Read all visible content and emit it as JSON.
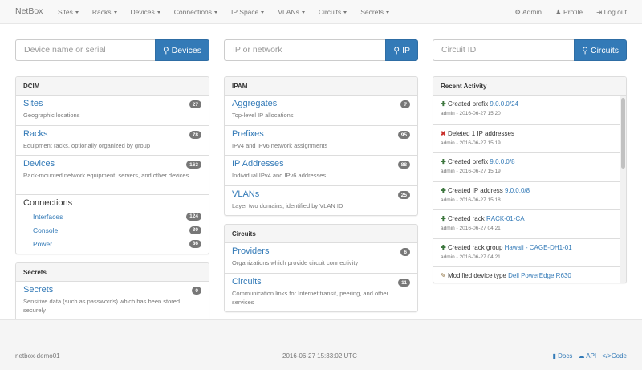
{
  "nav": {
    "brand": "NetBox",
    "menu": [
      "Sites",
      "Racks",
      "Devices",
      "Connections",
      "IP Space",
      "VLANs",
      "Circuits",
      "Secrets"
    ],
    "admin": "Admin",
    "profile": "Profile",
    "logout": "Log out"
  },
  "search": [
    {
      "placeholder": "Device name or serial",
      "button": "Devices"
    },
    {
      "placeholder": "IP or network",
      "button": "IP"
    },
    {
      "placeholder": "Circuit ID",
      "button": "Circuits"
    }
  ],
  "dcim": {
    "title": "DCIM",
    "items": [
      {
        "label": "Sites",
        "desc": "Geographic locations",
        "count": "27"
      },
      {
        "label": "Racks",
        "desc": "Equipment racks, optionally organized by group",
        "count": "78"
      },
      {
        "label": "Devices",
        "desc": "Rack-mounted network equipment, servers, and other devices",
        "count": "163"
      }
    ],
    "connections": {
      "label": "Connections",
      "items": [
        {
          "label": "Interfaces",
          "count": "124"
        },
        {
          "label": "Console",
          "count": "30"
        },
        {
          "label": "Power",
          "count": "86"
        }
      ]
    }
  },
  "secrets": {
    "title": "Secrets",
    "items": [
      {
        "label": "Secrets",
        "desc": "Sensitive data (such as passwords) which has been stored securely",
        "count": "0"
      }
    ]
  },
  "ipam": {
    "title": "IPAM",
    "items": [
      {
        "label": "Aggregates",
        "desc": "Top-level IP allocations",
        "count": "7"
      },
      {
        "label": "Prefixes",
        "desc": "IPv4 and IPv6 network assignments",
        "count": "95"
      },
      {
        "label": "IP Addresses",
        "desc": "Individual IPv4 and IPv6 addresses",
        "count": "88"
      },
      {
        "label": "VLANs",
        "desc": "Layer two domains, identified by VLAN ID",
        "count": "25"
      }
    ]
  },
  "circuits": {
    "title": "Circuits",
    "items": [
      {
        "label": "Providers",
        "desc": "Organizations which provide circuit connectivity",
        "count": "6"
      },
      {
        "label": "Circuits",
        "desc": "Communication links for Internet transit, peering, and other services",
        "count": "11"
      }
    ]
  },
  "activity": {
    "title": "Recent Activity",
    "items": [
      {
        "icon": "plus",
        "action": "Created prefix ",
        "link": "9.0.0.0/24",
        "meta": "admin - 2016-06-27 15:20"
      },
      {
        "icon": "x",
        "action": "Deleted 1 IP addresses",
        "link": "",
        "meta": "admin - 2016-06-27 15:19"
      },
      {
        "icon": "plus",
        "action": "Created prefix ",
        "link": "9.0.0.0/8",
        "meta": "admin - 2016-06-27 15:19"
      },
      {
        "icon": "plus",
        "action": "Created IP address ",
        "link": "9.0.0.0/8",
        "meta": "admin - 2016-06-27 15:18"
      },
      {
        "icon": "plus",
        "action": "Created rack ",
        "link": "RACK-01-CA",
        "meta": "admin - 2016-06-27 04:21"
      },
      {
        "icon": "plus",
        "action": "Created rack group ",
        "link": "Hawaii - CAGE-DH1-01",
        "meta": "admin - 2016-06-27 04:21"
      },
      {
        "icon": "pencil",
        "action": "Modified device type ",
        "link": "Dell PowerEdge R630",
        "meta": ""
      }
    ]
  },
  "footer": {
    "host": "netbox-demo01",
    "time": "2016-06-27 15:33:02 UTC",
    "docs": "Docs",
    "api": "API",
    "code": "Code"
  }
}
